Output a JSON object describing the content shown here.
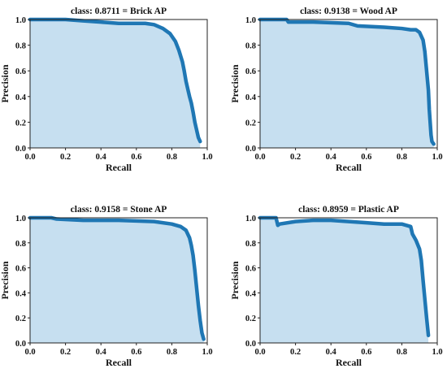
{
  "chart_data": [
    {
      "type": "area",
      "title": "class:  0.8711  = Brick AP",
      "xlabel": "Recall",
      "ylabel": "Precision",
      "xlim": [
        0.0,
        1.0
      ],
      "ylim": [
        0.0,
        1.0
      ],
      "xticks": [
        "0.0",
        "0.2",
        "0.4",
        "0.6",
        "0.8",
        "1.0"
      ],
      "yticks": [
        "0.0",
        "0.2",
        "0.4",
        "0.6",
        "0.8",
        "1.0"
      ],
      "grid": false,
      "line_color": "#1f77b4",
      "fill_color": "#c6dff0",
      "x": [
        0.0,
        0.2,
        0.3,
        0.4,
        0.5,
        0.6,
        0.65,
        0.7,
        0.75,
        0.79,
        0.82,
        0.84,
        0.86,
        0.87,
        0.88,
        0.89,
        0.9,
        0.91,
        0.92,
        0.93,
        0.94,
        0.95,
        0.96
      ],
      "y": [
        1.0,
        1.0,
        0.99,
        0.98,
        0.97,
        0.97,
        0.97,
        0.96,
        0.93,
        0.89,
        0.83,
        0.76,
        0.67,
        0.6,
        0.52,
        0.46,
        0.4,
        0.35,
        0.28,
        0.2,
        0.14,
        0.08,
        0.05
      ]
    },
    {
      "type": "area",
      "title": "class:  0.9138  = Wood AP",
      "xlabel": "Recall",
      "ylabel": "Precision",
      "xlim": [
        0.0,
        1.0
      ],
      "ylim": [
        0.0,
        1.0
      ],
      "xticks": [
        "0.0",
        "0.2",
        "0.4",
        "0.6",
        "0.8",
        "1.0"
      ],
      "yticks": [
        "0.0",
        "0.2",
        "0.4",
        "0.6",
        "0.8",
        "1.0"
      ],
      "grid": false,
      "line_color": "#1f77b4",
      "fill_color": "#c6dff0",
      "x": [
        0.0,
        0.15,
        0.16,
        0.3,
        0.5,
        0.55,
        0.7,
        0.8,
        0.85,
        0.88,
        0.9,
        0.92,
        0.93,
        0.94,
        0.95,
        0.955,
        0.96,
        0.965,
        0.97,
        0.98
      ],
      "y": [
        1.0,
        1.0,
        0.98,
        0.98,
        0.97,
        0.95,
        0.94,
        0.93,
        0.92,
        0.92,
        0.9,
        0.84,
        0.75,
        0.6,
        0.45,
        0.3,
        0.2,
        0.1,
        0.05,
        0.03
      ]
    },
    {
      "type": "area",
      "title": "class:  0.9158  = Stone AP",
      "xlabel": "Recall",
      "ylabel": "Precision",
      "xlim": [
        0.0,
        1.0
      ],
      "ylim": [
        0.0,
        1.0
      ],
      "xticks": [
        "0.0",
        "0.2",
        "0.4",
        "0.6",
        "0.8",
        "1.0"
      ],
      "yticks": [
        "0.0",
        "0.2",
        "0.4",
        "0.6",
        "0.8",
        "1.0"
      ],
      "grid": false,
      "line_color": "#1f77b4",
      "fill_color": "#c6dff0",
      "x": [
        0.0,
        0.12,
        0.15,
        0.3,
        0.5,
        0.7,
        0.8,
        0.85,
        0.88,
        0.9,
        0.91,
        0.92,
        0.93,
        0.94,
        0.95,
        0.96,
        0.97,
        0.98
      ],
      "y": [
        1.0,
        1.0,
        0.99,
        0.98,
        0.98,
        0.97,
        0.95,
        0.93,
        0.9,
        0.84,
        0.78,
        0.7,
        0.58,
        0.44,
        0.3,
        0.18,
        0.08,
        0.03
      ]
    },
    {
      "type": "area",
      "title": "class:  0.8959  = Plastic AP",
      "xlabel": "Recall",
      "ylabel": "Precision",
      "xlim": [
        0.0,
        1.0
      ],
      "ylim": [
        0.0,
        1.0
      ],
      "xticks": [
        "0.0",
        "0.2",
        "0.4",
        "0.6",
        "0.8",
        "1.0"
      ],
      "yticks": [
        "0.0",
        "0.2",
        "0.4",
        "0.6",
        "0.8",
        "1.0"
      ],
      "grid": false,
      "line_color": "#1f77b4",
      "fill_color": "#c6dff0",
      "x": [
        0.0,
        0.09,
        0.1,
        0.11,
        0.2,
        0.3,
        0.4,
        0.5,
        0.6,
        0.7,
        0.8,
        0.85,
        0.86,
        0.88,
        0.9,
        0.91,
        0.92,
        0.93,
        0.94,
        0.95
      ],
      "y": [
        1.0,
        1.0,
        0.94,
        0.95,
        0.97,
        0.98,
        0.98,
        0.97,
        0.96,
        0.95,
        0.95,
        0.93,
        0.87,
        0.82,
        0.75,
        0.66,
        0.5,
        0.35,
        0.2,
        0.06
      ]
    }
  ]
}
